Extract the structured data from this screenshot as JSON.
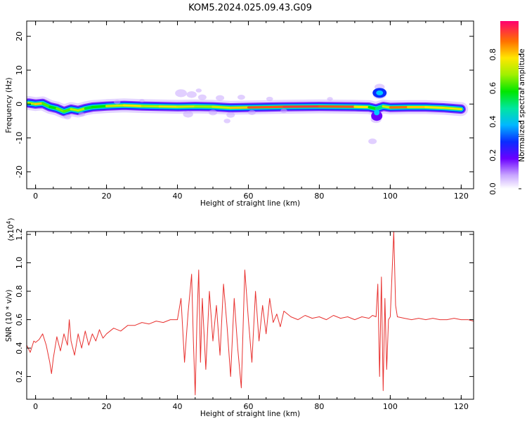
{
  "title": "KOM5.2024.025.09.43.G09",
  "chart_data": [
    {
      "type": "heatmap",
      "xlabel": "Height of straight line (km)",
      "ylabel": "Frequency (Hz)",
      "xlim": [
        -2.5,
        123.5
      ],
      "ylim": [
        -25,
        24.5
      ],
      "xticks": [
        0,
        20,
        40,
        60,
        80,
        100,
        120
      ],
      "yticks": [
        -20,
        -10,
        0,
        10,
        20
      ],
      "colorbar": {
        "label": "Normalized spectral amplitude",
        "range": [
          0,
          1
        ],
        "ticks": [
          "0.0",
          "0.2",
          "0.4",
          "0.6",
          "0.8"
        ]
      },
      "ridge": {
        "x": [
          -2,
          0,
          2,
          4,
          6,
          8,
          10,
          12,
          14,
          16,
          20,
          25,
          30,
          35,
          40,
          45,
          50,
          55,
          60,
          70,
          80,
          90,
          94,
          96,
          98,
          100,
          105,
          110,
          115,
          120
        ],
        "y": [
          0.3,
          0,
          0.2,
          -0.8,
          -1.3,
          -2.2,
          -1.5,
          -1.9,
          -1.3,
          -0.9,
          -0.6,
          -0.4,
          -0.6,
          -0.7,
          -0.8,
          -0.7,
          -0.8,
          -1.1,
          -1.0,
          -0.8,
          -0.7,
          -0.8,
          -0.9,
          -1.4,
          -0.7,
          -1.0,
          -0.9,
          -0.9,
          -1.1,
          -1.5
        ],
        "amplitude": [
          0.55,
          0.9,
          0.75,
          0.55,
          0.65,
          0.7,
          0.6,
          0.85,
          0.6,
          0.55,
          0.65,
          0.85,
          0.75,
          0.7,
          0.85,
          0.65,
          0.75,
          0.75,
          0.9,
          0.95,
          0.95,
          0.9,
          0.7,
          0.5,
          0.55,
          0.95,
          0.85,
          0.8,
          0.8,
          0.75
        ]
      }
    },
    {
      "type": "line",
      "xlabel": "Height of straight line (km)",
      "ylabel": "SNR (10 * v/v)",
      "scale_label": "(x10",
      "scale_exp": "4",
      "scale_close": ")",
      "xlim": [
        -2.5,
        123.5
      ],
      "ylim": [
        0.04,
        1.22
      ],
      "xticks": [
        0,
        20,
        40,
        60,
        80,
        100,
        120
      ],
      "yticks": [
        0.2,
        0.4,
        0.6,
        0.8,
        1.0,
        1.2
      ],
      "series": [
        {
          "color": "#e8312f",
          "x": [
            -2.5,
            -1.5,
            -0.5,
            0,
            1,
            2,
            3,
            4,
            4.5,
            5,
            6,
            7,
            8,
            9,
            9.5,
            10,
            11,
            12,
            13,
            14,
            15,
            16,
            17,
            18,
            19,
            20,
            22,
            24,
            26,
            28,
            30,
            32,
            34,
            36,
            38,
            40,
            41,
            42,
            43,
            44,
            44.5,
            45,
            45.5,
            46,
            46.5,
            47,
            47.5,
            48,
            49,
            50,
            51,
            52,
            53,
            54,
            55,
            56,
            57,
            58,
            59,
            60,
            61,
            62,
            63,
            64,
            65,
            66,
            67,
            68,
            69,
            70,
            72,
            74,
            76,
            78,
            80,
            82,
            84,
            86,
            88,
            90,
            92,
            94,
            95,
            96,
            96.5,
            97,
            97.5,
            98,
            98.5,
            99,
            99.5,
            100,
            100.5,
            101,
            101.5,
            102,
            104,
            106,
            108,
            110,
            112,
            114,
            116,
            118,
            120,
            122,
            123.5
          ],
          "values": [
            0.42,
            0.37,
            0.45,
            0.44,
            0.46,
            0.5,
            0.42,
            0.3,
            0.22,
            0.33,
            0.48,
            0.38,
            0.5,
            0.42,
            0.6,
            0.45,
            0.35,
            0.5,
            0.4,
            0.52,
            0.42,
            0.5,
            0.45,
            0.53,
            0.47,
            0.5,
            0.54,
            0.52,
            0.56,
            0.56,
            0.58,
            0.57,
            0.59,
            0.58,
            0.6,
            0.6,
            0.75,
            0.3,
            0.65,
            0.92,
            0.45,
            0.07,
            0.6,
            0.95,
            0.3,
            0.75,
            0.5,
            0.25,
            0.8,
            0.45,
            0.7,
            0.35,
            0.85,
            0.55,
            0.2,
            0.75,
            0.4,
            0.12,
            0.95,
            0.6,
            0.3,
            0.8,
            0.45,
            0.7,
            0.5,
            0.75,
            0.58,
            0.64,
            0.55,
            0.66,
            0.62,
            0.6,
            0.63,
            0.61,
            0.62,
            0.6,
            0.63,
            0.61,
            0.62,
            0.6,
            0.62,
            0.61,
            0.63,
            0.62,
            0.85,
            0.2,
            0.9,
            0.1,
            0.75,
            0.25,
            0.6,
            0.62,
            0.92,
            1.22,
            0.7,
            0.62,
            0.61,
            0.6,
            0.61,
            0.6,
            0.61,
            0.6,
            0.6,
            0.61,
            0.6,
            0.6,
            0.59
          ]
        }
      ]
    }
  ]
}
